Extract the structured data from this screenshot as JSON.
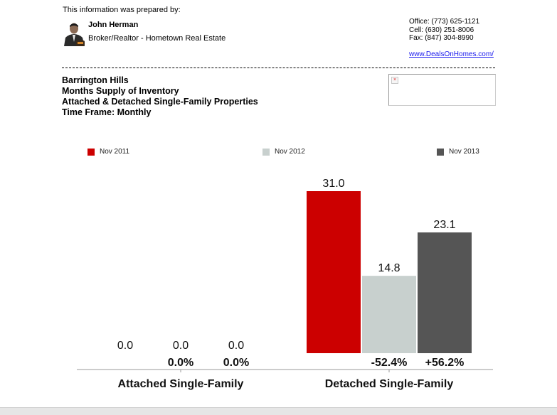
{
  "header": {
    "prepared_by_label": "This information was prepared by:",
    "agent_name": "John Herman",
    "agent_role": "Broker/Realtor - Hometown Real Estate",
    "office": "Office: (773) 625-1121",
    "cell": "Cell: (630) 251-8006",
    "fax": "Fax: (847) 304-8990",
    "website": "www.DealsOnHomes.com/"
  },
  "report": {
    "area": "Barrington Hills",
    "metric": "Months Supply of Inventory",
    "property_types": "Attached & Detached Single-Family Properties",
    "time_frame": "Time Frame: Monthly",
    "broken_image_glyph": "×"
  },
  "colors": {
    "nov2011": "#cc0000",
    "nov2012": "#c8d0ce",
    "nov2013": "#555555"
  },
  "chart_data": {
    "type": "bar",
    "title": "Months Supply of Inventory",
    "categories": [
      "Attached Single-Family",
      "Detached Single-Family"
    ],
    "series": [
      {
        "name": "Nov 2011",
        "values": [
          0.0,
          31.0
        ],
        "labels": [
          "0.0",
          "31.0"
        ]
      },
      {
        "name": "Nov 2012",
        "values": [
          0.0,
          14.8
        ],
        "labels": [
          "0.0",
          "14.8"
        ]
      },
      {
        "name": "Nov 2013",
        "values": [
          0.0,
          23.1
        ],
        "labels": [
          "0.0",
          "23.1"
        ]
      }
    ],
    "pct_changes": [
      [
        "0.0%",
        "0.0%"
      ],
      [
        "-52.4%",
        "+56.2%"
      ]
    ],
    "ylim": [
      0,
      31.0
    ],
    "grid": false,
    "legend_position": "top",
    "xlabel": "",
    "ylabel": ""
  }
}
